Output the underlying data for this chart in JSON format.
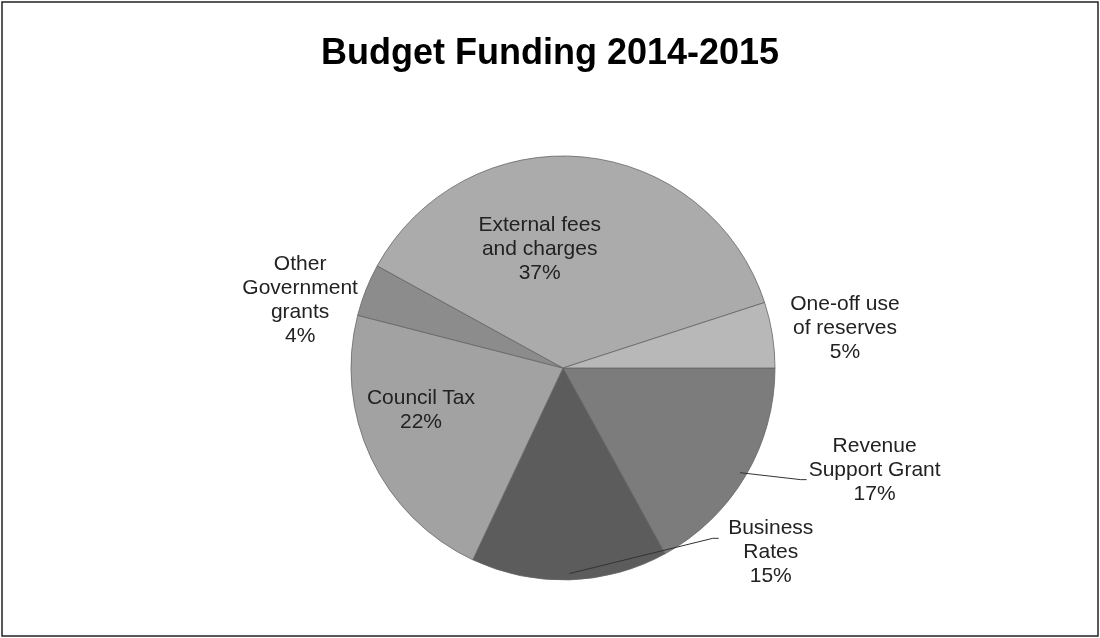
{
  "chart_data": {
    "type": "pie",
    "title": "Budget Funding 2014-2015",
    "categories": [
      "Revenue Support Grant",
      "Business Rates",
      "Council Tax",
      "Other Government grants",
      "External fees and charges",
      "One-off use of reserves"
    ],
    "values": [
      17,
      15,
      22,
      4,
      37,
      5
    ],
    "value_labels": [
      "17%",
      "15%",
      "22%",
      "4%",
      "37%",
      "5%"
    ],
    "colors": [
      "#7c7c7c",
      "#5c5c5c",
      "#a2a2a2",
      "#8c8c8c",
      "#ababab",
      "#b8b8b8"
    ]
  }
}
